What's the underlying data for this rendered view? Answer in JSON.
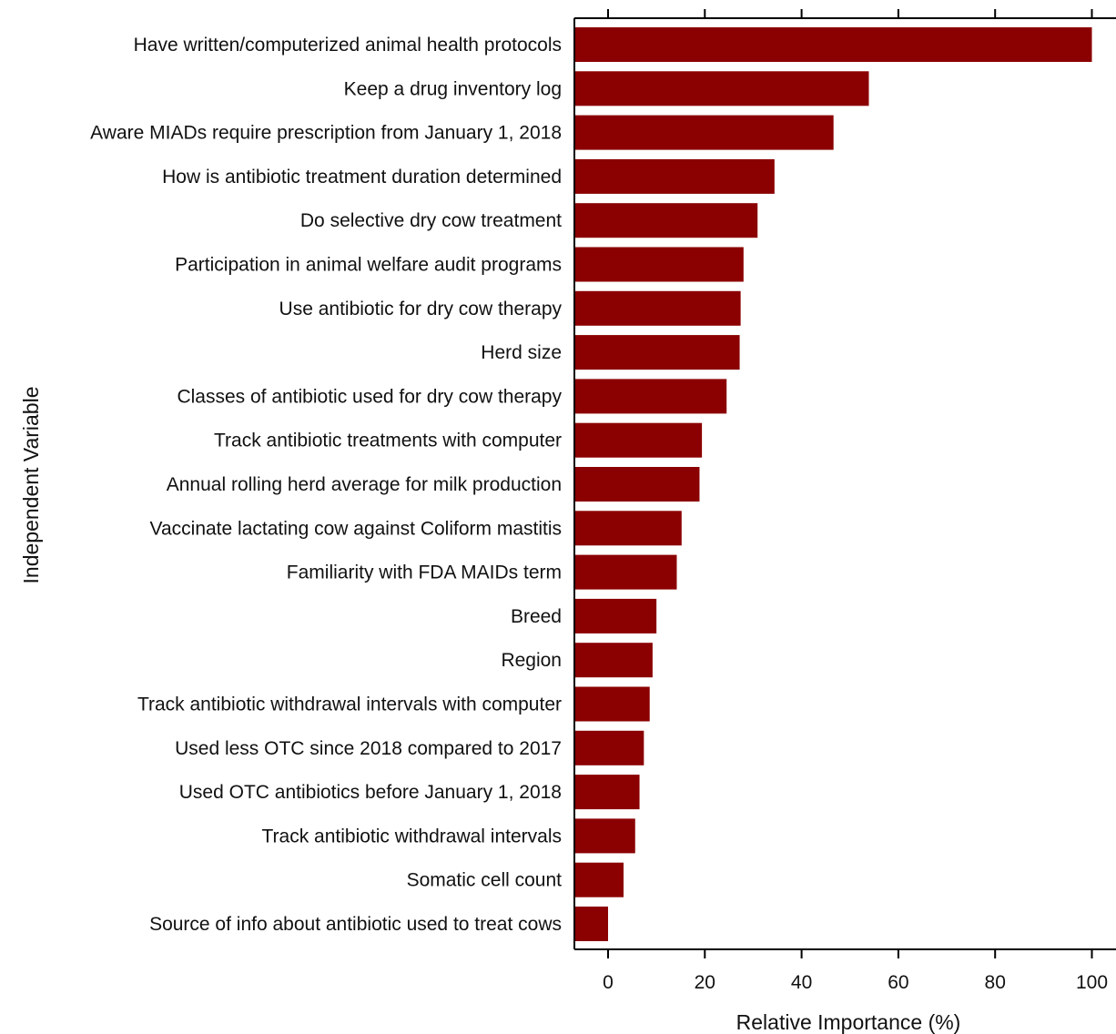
{
  "chart_data": {
    "type": "bar",
    "orientation": "horizontal",
    "categories": [
      "Have written/computerized animal health protocols",
      "Keep a drug inventory log",
      "Aware MIADs require prescription from January 1, 2018",
      "How is antibiotic treatment duration determined",
      "Do selective dry cow treatment",
      "Participation in animal welfare audit programs",
      "Use antibiotic for dry cow therapy",
      "Herd size",
      "Classes of antibiotic used for dry cow therapy",
      "Track antibiotic treatments with computer",
      "Annual rolling herd average for milk production",
      "Vaccinate lactating cow against Coliform mastitis",
      "Familiarity with FDA MAIDs term",
      "Breed",
      "Region",
      "Track antibiotic withdrawal intervals with computer",
      "Used less OTC since 2018 compared to 2017",
      "Used OTC antibiotics before January 1, 2018",
      "Track antibiotic withdrawal intervals",
      "Somatic cell count",
      "Source of info about antibiotic used to treat cows"
    ],
    "values": [
      100,
      53.9,
      46.6,
      34.4,
      30.9,
      28.0,
      27.4,
      27.2,
      24.5,
      19.4,
      18.9,
      15.2,
      14.2,
      10.0,
      9.2,
      8.6,
      7.4,
      6.5,
      5.6,
      3.2,
      0.0
    ],
    "xlabel": "Relative Importance (%)",
    "ylabel": "Independent Variable",
    "xlim": [
      -6.8,
      105
    ],
    "xticks": [
      0,
      20,
      40,
      60,
      80,
      100
    ],
    "xtick_labels": [
      "0",
      "20",
      "40",
      "60",
      "80",
      "100"
    ],
    "grid": false,
    "legend": "none",
    "colors": {
      "bar": "#8B0000",
      "axis": "#000000",
      "text": "#111111",
      "background": "#ffffff"
    }
  }
}
